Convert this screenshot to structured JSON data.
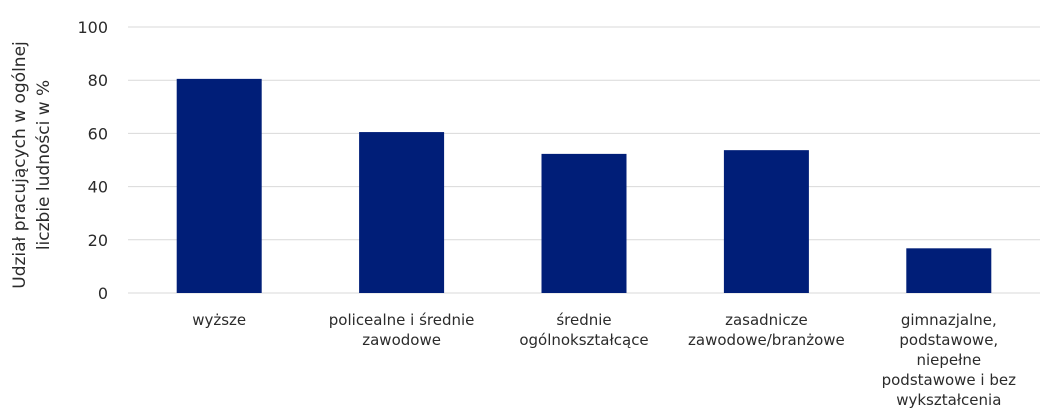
{
  "chart_data": {
    "type": "bar",
    "categories": [
      "wyższe",
      "policealne i średnie zawodowe",
      "średnie ogólnokształcące",
      "zasadnicze zawodowe/branżowe",
      "gimnazjalne, podstawowe, niepełne podstawowe i bez wykształcenia"
    ],
    "category_lines": [
      [
        "wyższe"
      ],
      [
        "policealne i średnie",
        "zawodowe"
      ],
      [
        "średnie",
        "ogólnokształcące"
      ],
      [
        "zasadnicze",
        "zawodowe/branżowe"
      ],
      [
        "gimnazjalne,",
        "podstawowe,",
        "niepełne",
        "podstawowe i bez",
        "wykształcenia"
      ]
    ],
    "values": [
      80.5,
      60.5,
      52.3,
      53.7,
      16.8
    ],
    "ylabel_lines": [
      "Udział pracujących w ogólnej",
      "liczbie ludności w %"
    ],
    "ylim": [
      0,
      100
    ],
    "yticks": [
      0,
      20,
      40,
      60,
      80,
      100
    ],
    "grid": true,
    "legend": "none",
    "colors": {
      "bar": "#001E78",
      "grid": "#d9d9d9",
      "text": "#2b2b2b"
    }
  }
}
